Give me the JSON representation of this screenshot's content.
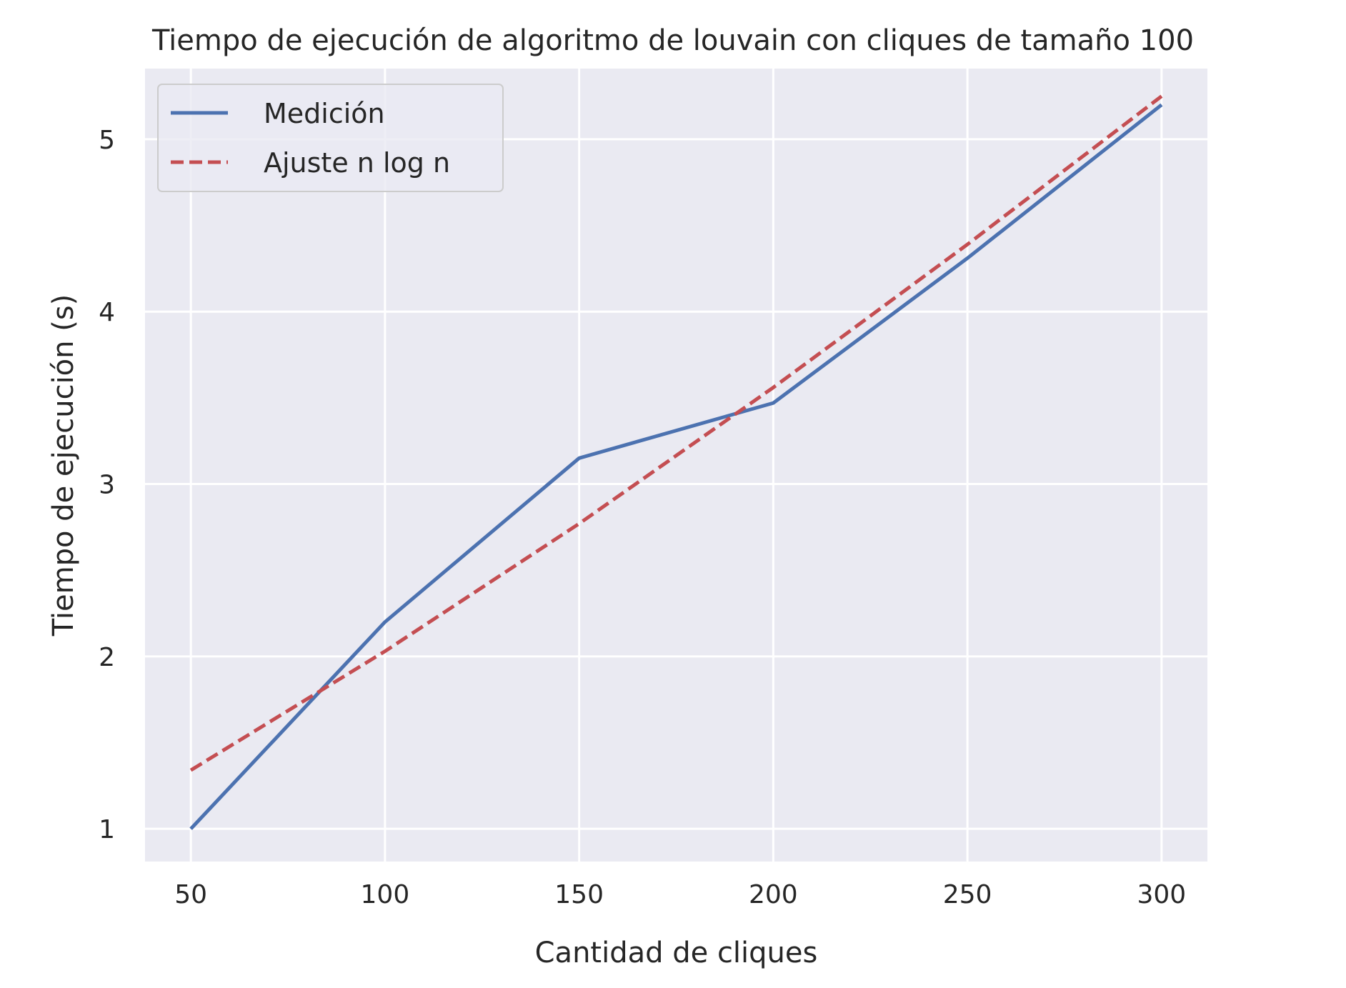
{
  "chart_data": {
    "type": "line",
    "title": "Tiempo de ejecución de algoritmo de louvain con cliques de tamaño 100",
    "xlabel": "Cantidad de cliques",
    "ylabel": "Tiempo de ejecución (s)",
    "xlim": [
      38.2,
      311.8
    ],
    "ylim": [
      0.81,
      5.41
    ],
    "x_ticks": [
      50,
      100,
      150,
      200,
      250,
      300
    ],
    "y_ticks": [
      1,
      2,
      3,
      4,
      5
    ],
    "grid": true,
    "legend_position": "top-left",
    "series": [
      {
        "name": "Medición",
        "color": "#4c72b0",
        "style": "solid",
        "x": [
          50,
          100,
          150,
          200,
          250,
          300
        ],
        "y": [
          1.0,
          2.2,
          3.15,
          3.47,
          4.31,
          5.2
        ]
      },
      {
        "name": "Ajuste n log n",
        "color": "#c44e52",
        "style": "dashed",
        "x": [
          50,
          100,
          150,
          200,
          250,
          300
        ],
        "y": [
          1.34,
          2.03,
          2.77,
          3.56,
          4.39,
          5.25
        ]
      }
    ]
  }
}
